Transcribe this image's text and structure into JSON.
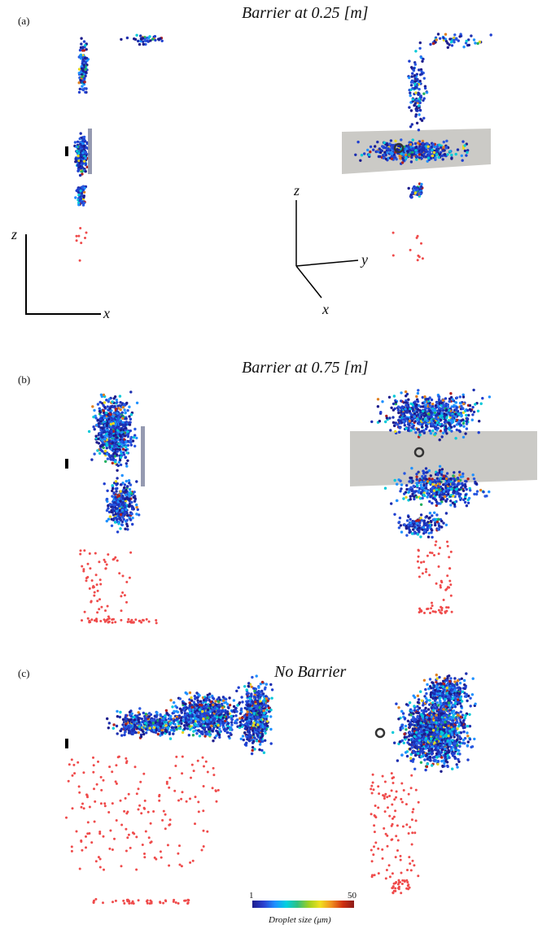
{
  "panels": [
    {
      "label": "(a)",
      "title": "Barrier at 0.25 [m]"
    },
    {
      "label": "(b)",
      "title": "Barrier at 0.75 [m]"
    },
    {
      "label": "(c)",
      "title": "No Barrier"
    }
  ],
  "axes": {
    "side_view": {
      "vertical": "z",
      "horizontal": "x"
    },
    "iso_view": {
      "vertical": "z",
      "right": "y",
      "diagonal": "x"
    }
  },
  "colorbar": {
    "min_label": "1",
    "max_label": "50",
    "title": "Droplet size (μm)",
    "colors": [
      "#1c1c8c",
      "#2a3fd0",
      "#1e90ff",
      "#00d0e0",
      "#30c080",
      "#a0d020",
      "#f0e020",
      "#f09020",
      "#d03010",
      "#8b1a1a"
    ]
  },
  "colors": {
    "droplet_palette": [
      "#1c1c8c",
      "#1c2fb0",
      "#2040d0",
      "#2858e0",
      "#1e90ff",
      "#00c8d8",
      "#20b060",
      "#e8d820",
      "#e08020",
      "#b02020"
    ],
    "ground_droplet": "#ef4b4b",
    "barrier_fill": "#c7c5c1",
    "barrier_side": "#8a8fa8"
  }
}
